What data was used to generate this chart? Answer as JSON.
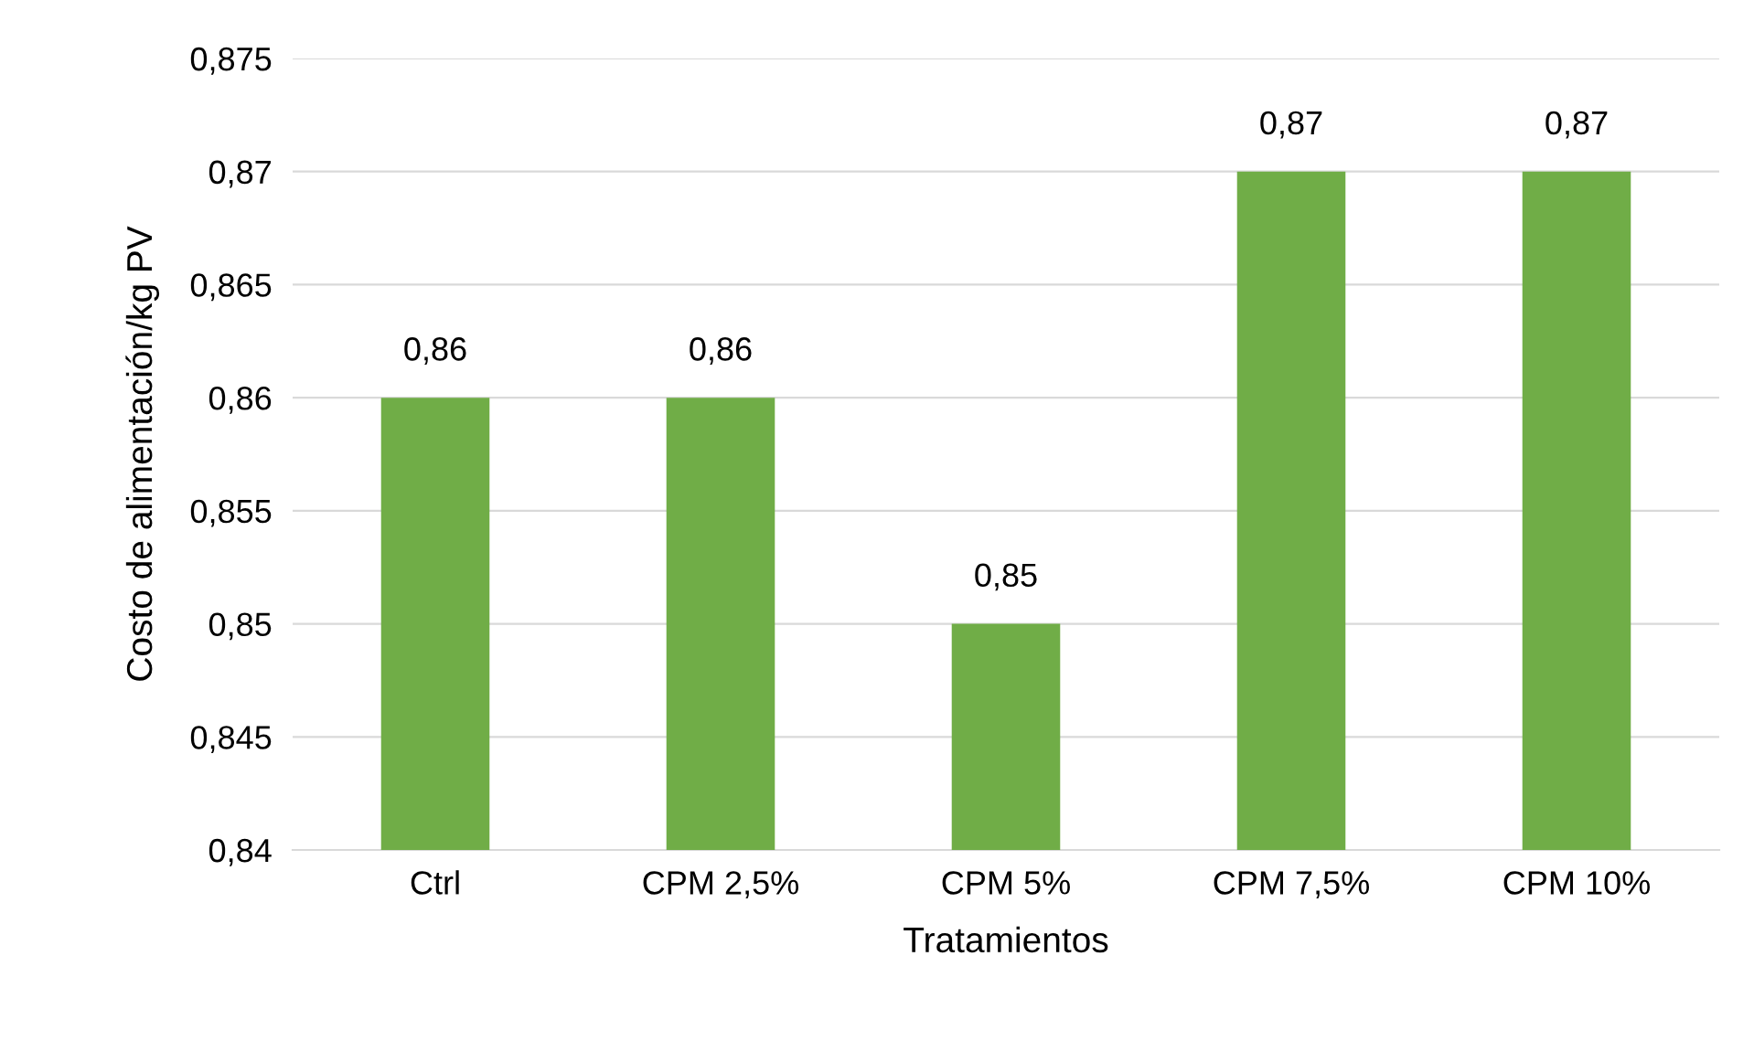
{
  "chart_data": {
    "type": "bar",
    "xlabel": "Tratamientos",
    "ylabel": "Costo de alimentación/kg PV",
    "categories": [
      "Ctrl",
      "CPM 2,5%",
      "CPM 5%",
      "CPM 7,5%",
      "CPM 10%"
    ],
    "values": [
      0.86,
      0.86,
      0.85,
      0.87,
      0.87
    ],
    "value_labels": [
      "0,86",
      "0,86",
      "0,85",
      "0,87",
      "0,87"
    ],
    "color": "#70ad47",
    "ylim": [
      0.84,
      0.875
    ],
    "yticks": [
      {
        "value": 0.84,
        "label": "0,84"
      },
      {
        "value": 0.845,
        "label": "0,845"
      },
      {
        "value": 0.85,
        "label": "0,85"
      },
      {
        "value": 0.855,
        "label": "0,855"
      },
      {
        "value": 0.86,
        "label": "0,86"
      },
      {
        "value": 0.865,
        "label": "0,865"
      },
      {
        "value": 0.87,
        "label": "0,87"
      },
      {
        "value": 0.875,
        "label": "0,875"
      }
    ],
    "grid": "y"
  }
}
